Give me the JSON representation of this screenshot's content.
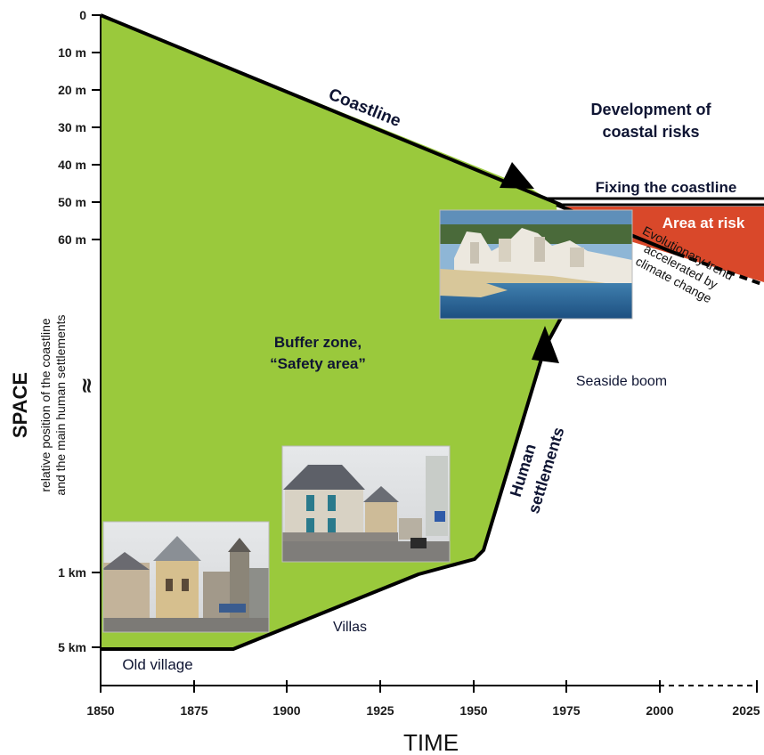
{
  "axes": {
    "x_title": "TIME",
    "y_title": "SPACE",
    "y_subtitle_line1": "relative position of the coastline",
    "y_subtitle_line2": "and the main human settlements",
    "y_break": "≈",
    "x_ticks": [
      "1850",
      "1875",
      "1900",
      "1925",
      "1950",
      "1975",
      "2000",
      "2025"
    ],
    "y_ticks": [
      "0",
      "10 m",
      "20 m",
      "30 m",
      "40 m",
      "50 m",
      "60 m",
      "1 km",
      "5 km"
    ]
  },
  "labels": {
    "coastline": "Coastline",
    "development_line1": "Development of",
    "development_line2": "coastal risks",
    "fixing": "Fixing the coastline",
    "area_at_risk": "Area at risk",
    "evolution_line1": "Evolutionary trend",
    "evolution_line2": "accelerated by",
    "evolution_line3": "climate change",
    "buffer_line1": "Buffer zone,",
    "buffer_line2": "“Safety area”",
    "seaside_boom": "Seaside boom",
    "human_line1": "Human",
    "human_line2": "settlements",
    "villas": "Villas",
    "old_village": "Old village"
  },
  "photos": [
    "old-village-photo",
    "villas-photo",
    "seaside-resort-photo"
  ],
  "colors": {
    "buffer_zone": "#9ac93c",
    "area_at_risk": "#d9482a",
    "line": "#000000",
    "text": "#0f1533"
  }
}
